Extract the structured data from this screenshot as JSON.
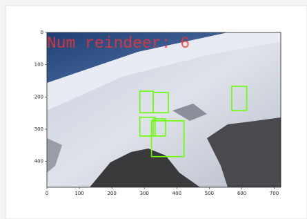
{
  "chart_data": {
    "type": "image",
    "annotation": "Num reindeer: 6",
    "annotation_color": "#ff3030",
    "box_color": "#66ff00",
    "boxes": [
      {
        "x": [
          286,
          327
        ],
        "y": [
          182,
          249
        ]
      },
      {
        "x": [
          327,
          374
        ],
        "y": [
          186,
          249
        ]
      },
      {
        "x": [
          286,
          333
        ],
        "y": [
          263,
          321
        ]
      },
      {
        "x": [
          327,
          365
        ],
        "y": [
          268,
          321
        ]
      },
      {
        "x": [
          322,
          422
        ],
        "y": [
          274,
          385
        ]
      },
      {
        "x": [
          569,
          615
        ],
        "y": [
          167,
          242
        ]
      }
    ],
    "xlim": [
      0,
      720
    ],
    "ylim": [
      480,
      0
    ],
    "xticks": [
      0,
      100,
      200,
      300,
      400,
      500,
      600,
      700
    ],
    "yticks": [
      0,
      100,
      200,
      300,
      400
    ]
  }
}
